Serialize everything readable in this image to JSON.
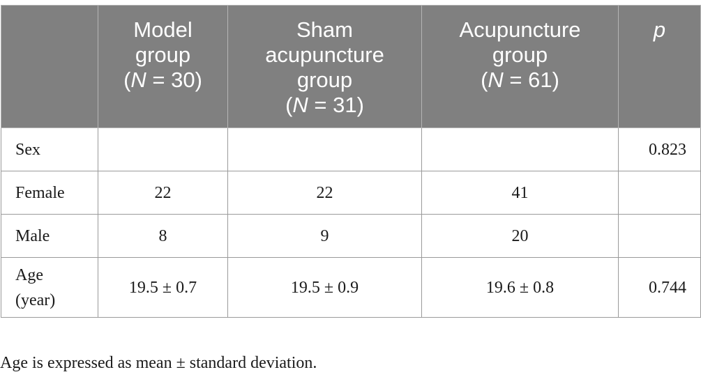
{
  "table": {
    "header": {
      "blank": "",
      "model": {
        "line1": "Model",
        "line2": "group",
        "n_prefix": "(",
        "n_var": "N",
        "n_rest": " = 30)"
      },
      "sham": {
        "line1": "Sham",
        "line2": "acupuncture",
        "line3": "group",
        "n_prefix": "(",
        "n_var": "N",
        "n_rest": " = 31)"
      },
      "acu": {
        "line1": "Acupuncture",
        "line2": "group",
        "n_prefix": "(",
        "n_var": "N",
        "n_rest": " = 61)"
      },
      "p": "p"
    },
    "rows": {
      "sex": {
        "label": "Sex",
        "model": "",
        "sham": "",
        "acu": "",
        "p": "0.823"
      },
      "female": {
        "label": "Female",
        "model": "22",
        "sham": "22",
        "acu": "41",
        "p": ""
      },
      "male": {
        "label": "Male",
        "model": "8",
        "sham": "9",
        "acu": "20",
        "p": ""
      },
      "age": {
        "label_line1": "Age",
        "label_line2": "(year)",
        "model": "19.5 ± 0.7",
        "sham": "19.5 ± 0.9",
        "acu": "19.6 ± 0.8",
        "p": "0.744"
      }
    }
  },
  "footnote": "Age is expressed as mean ± standard deviation."
}
